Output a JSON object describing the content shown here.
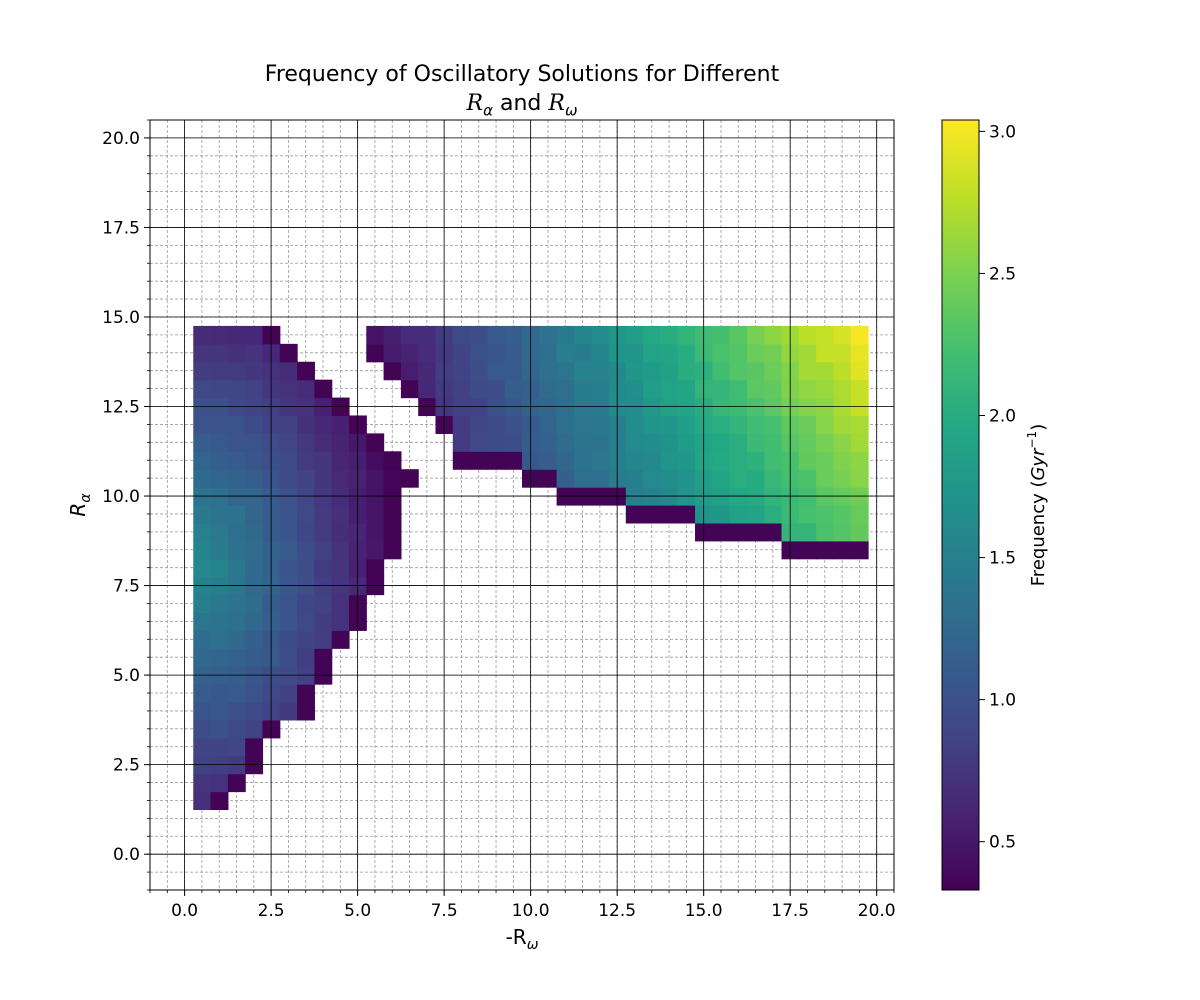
{
  "chart_data": {
    "type": "heatmap",
    "title_line1": "Frequency of Oscillatory Solutions for Different",
    "title_line2_parts": [
      "R",
      "α",
      " and ",
      "R",
      "ω"
    ],
    "xlabel_parts": [
      "-R",
      "ω"
    ],
    "ylabel_parts": [
      "R",
      "α"
    ],
    "xlim": [
      -1.0,
      20.5
    ],
    "ylim": [
      -1.0,
      20.5
    ],
    "xticks": [
      0.0,
      2.5,
      5.0,
      7.5,
      10.0,
      12.5,
      15.0,
      17.5,
      20.0
    ],
    "yticks": [
      0.0,
      2.5,
      5.0,
      7.5,
      10.0,
      12.5,
      15.0,
      17.5,
      20.0
    ],
    "xtick_labels": [
      "0.0",
      "2.5",
      "5.0",
      "7.5",
      "10.0",
      "12.5",
      "15.0",
      "17.5",
      "20.0"
    ],
    "ytick_labels": [
      "0.0",
      "2.5",
      "5.0",
      "7.5",
      "10.0",
      "12.5",
      "15.0",
      "17.5",
      "20.0"
    ],
    "minor_step": 0.5,
    "cell_size": 0.5,
    "grid": true,
    "colormap": "viridis",
    "colorbar": {
      "label_text": "Frequency (",
      "label_math": "Gyr",
      "label_sup": "−1",
      "label_close": ")",
      "vmin": 0.33,
      "vmax": 3.04,
      "ticks": [
        0.5,
        1.0,
        1.5,
        2.0,
        2.5,
        3.0
      ],
      "tick_labels": [
        "0.5",
        "1.0",
        "1.5",
        "2.0",
        "2.5",
        "3.0"
      ]
    },
    "regions": [
      {
        "name": "left-wedge",
        "x_range": [
          0.5,
          6.5
        ],
        "y_range": [
          1.5,
          14.5
        ],
        "x_max_by_y": [
          [
            1.5,
            1.0
          ],
          [
            2.0,
            1.5
          ],
          [
            2.5,
            2.0
          ],
          [
            3.0,
            2.0
          ],
          [
            3.5,
            2.5
          ],
          [
            4.0,
            3.5
          ],
          [
            4.5,
            3.5
          ],
          [
            5.0,
            4.0
          ],
          [
            5.5,
            4.0
          ],
          [
            6.0,
            4.5
          ],
          [
            6.5,
            5.0
          ],
          [
            7.0,
            5.0
          ],
          [
            7.5,
            5.5
          ],
          [
            8.0,
            5.5
          ],
          [
            8.5,
            6.0
          ],
          [
            9.0,
            6.0
          ],
          [
            9.5,
            6.0
          ],
          [
            10.0,
            6.0
          ],
          [
            10.5,
            6.5
          ],
          [
            11.0,
            6.0
          ],
          [
            11.5,
            5.5
          ],
          [
            12.0,
            5.0
          ],
          [
            12.5,
            4.5
          ],
          [
            13.0,
            4.0
          ],
          [
            13.5,
            3.5
          ],
          [
            14.0,
            3.0
          ],
          [
            14.5,
            2.5
          ]
        ],
        "value_center": [
          0.5,
          8.0
        ],
        "value_peak": 1.62,
        "value_floor": 0.4,
        "edge_value": 0.35
      },
      {
        "name": "right-band",
        "x_range": [
          5.5,
          19.5
        ],
        "y_range": [
          8.5,
          14.5
        ],
        "y_min_by_x": [
          [
            5.5,
            14.0
          ],
          [
            6.0,
            13.5
          ],
          [
            6.5,
            13.0
          ],
          [
            7.0,
            12.5
          ],
          [
            7.5,
            12.0
          ],
          [
            8.0,
            11.0
          ],
          [
            8.5,
            11.0
          ],
          [
            9.0,
            11.0
          ],
          [
            9.5,
            11.0
          ],
          [
            10.0,
            10.5
          ],
          [
            10.5,
            10.5
          ],
          [
            11.0,
            10.0
          ],
          [
            11.5,
            10.0
          ],
          [
            12.0,
            10.0
          ],
          [
            12.5,
            10.0
          ],
          [
            13.0,
            9.5
          ],
          [
            13.5,
            9.5
          ],
          [
            14.0,
            9.5
          ],
          [
            14.5,
            9.5
          ],
          [
            15.0,
            9.0
          ],
          [
            15.5,
            9.0
          ],
          [
            16.0,
            9.0
          ],
          [
            16.5,
            9.0
          ],
          [
            17.0,
            9.0
          ],
          [
            17.5,
            8.5
          ],
          [
            18.0,
            8.5
          ],
          [
            18.5,
            8.5
          ],
          [
            19.0,
            8.5
          ],
          [
            19.5,
            8.5
          ]
        ],
        "value_range": [
          0.45,
          3.0
        ],
        "edge_value": 0.35
      }
    ]
  }
}
